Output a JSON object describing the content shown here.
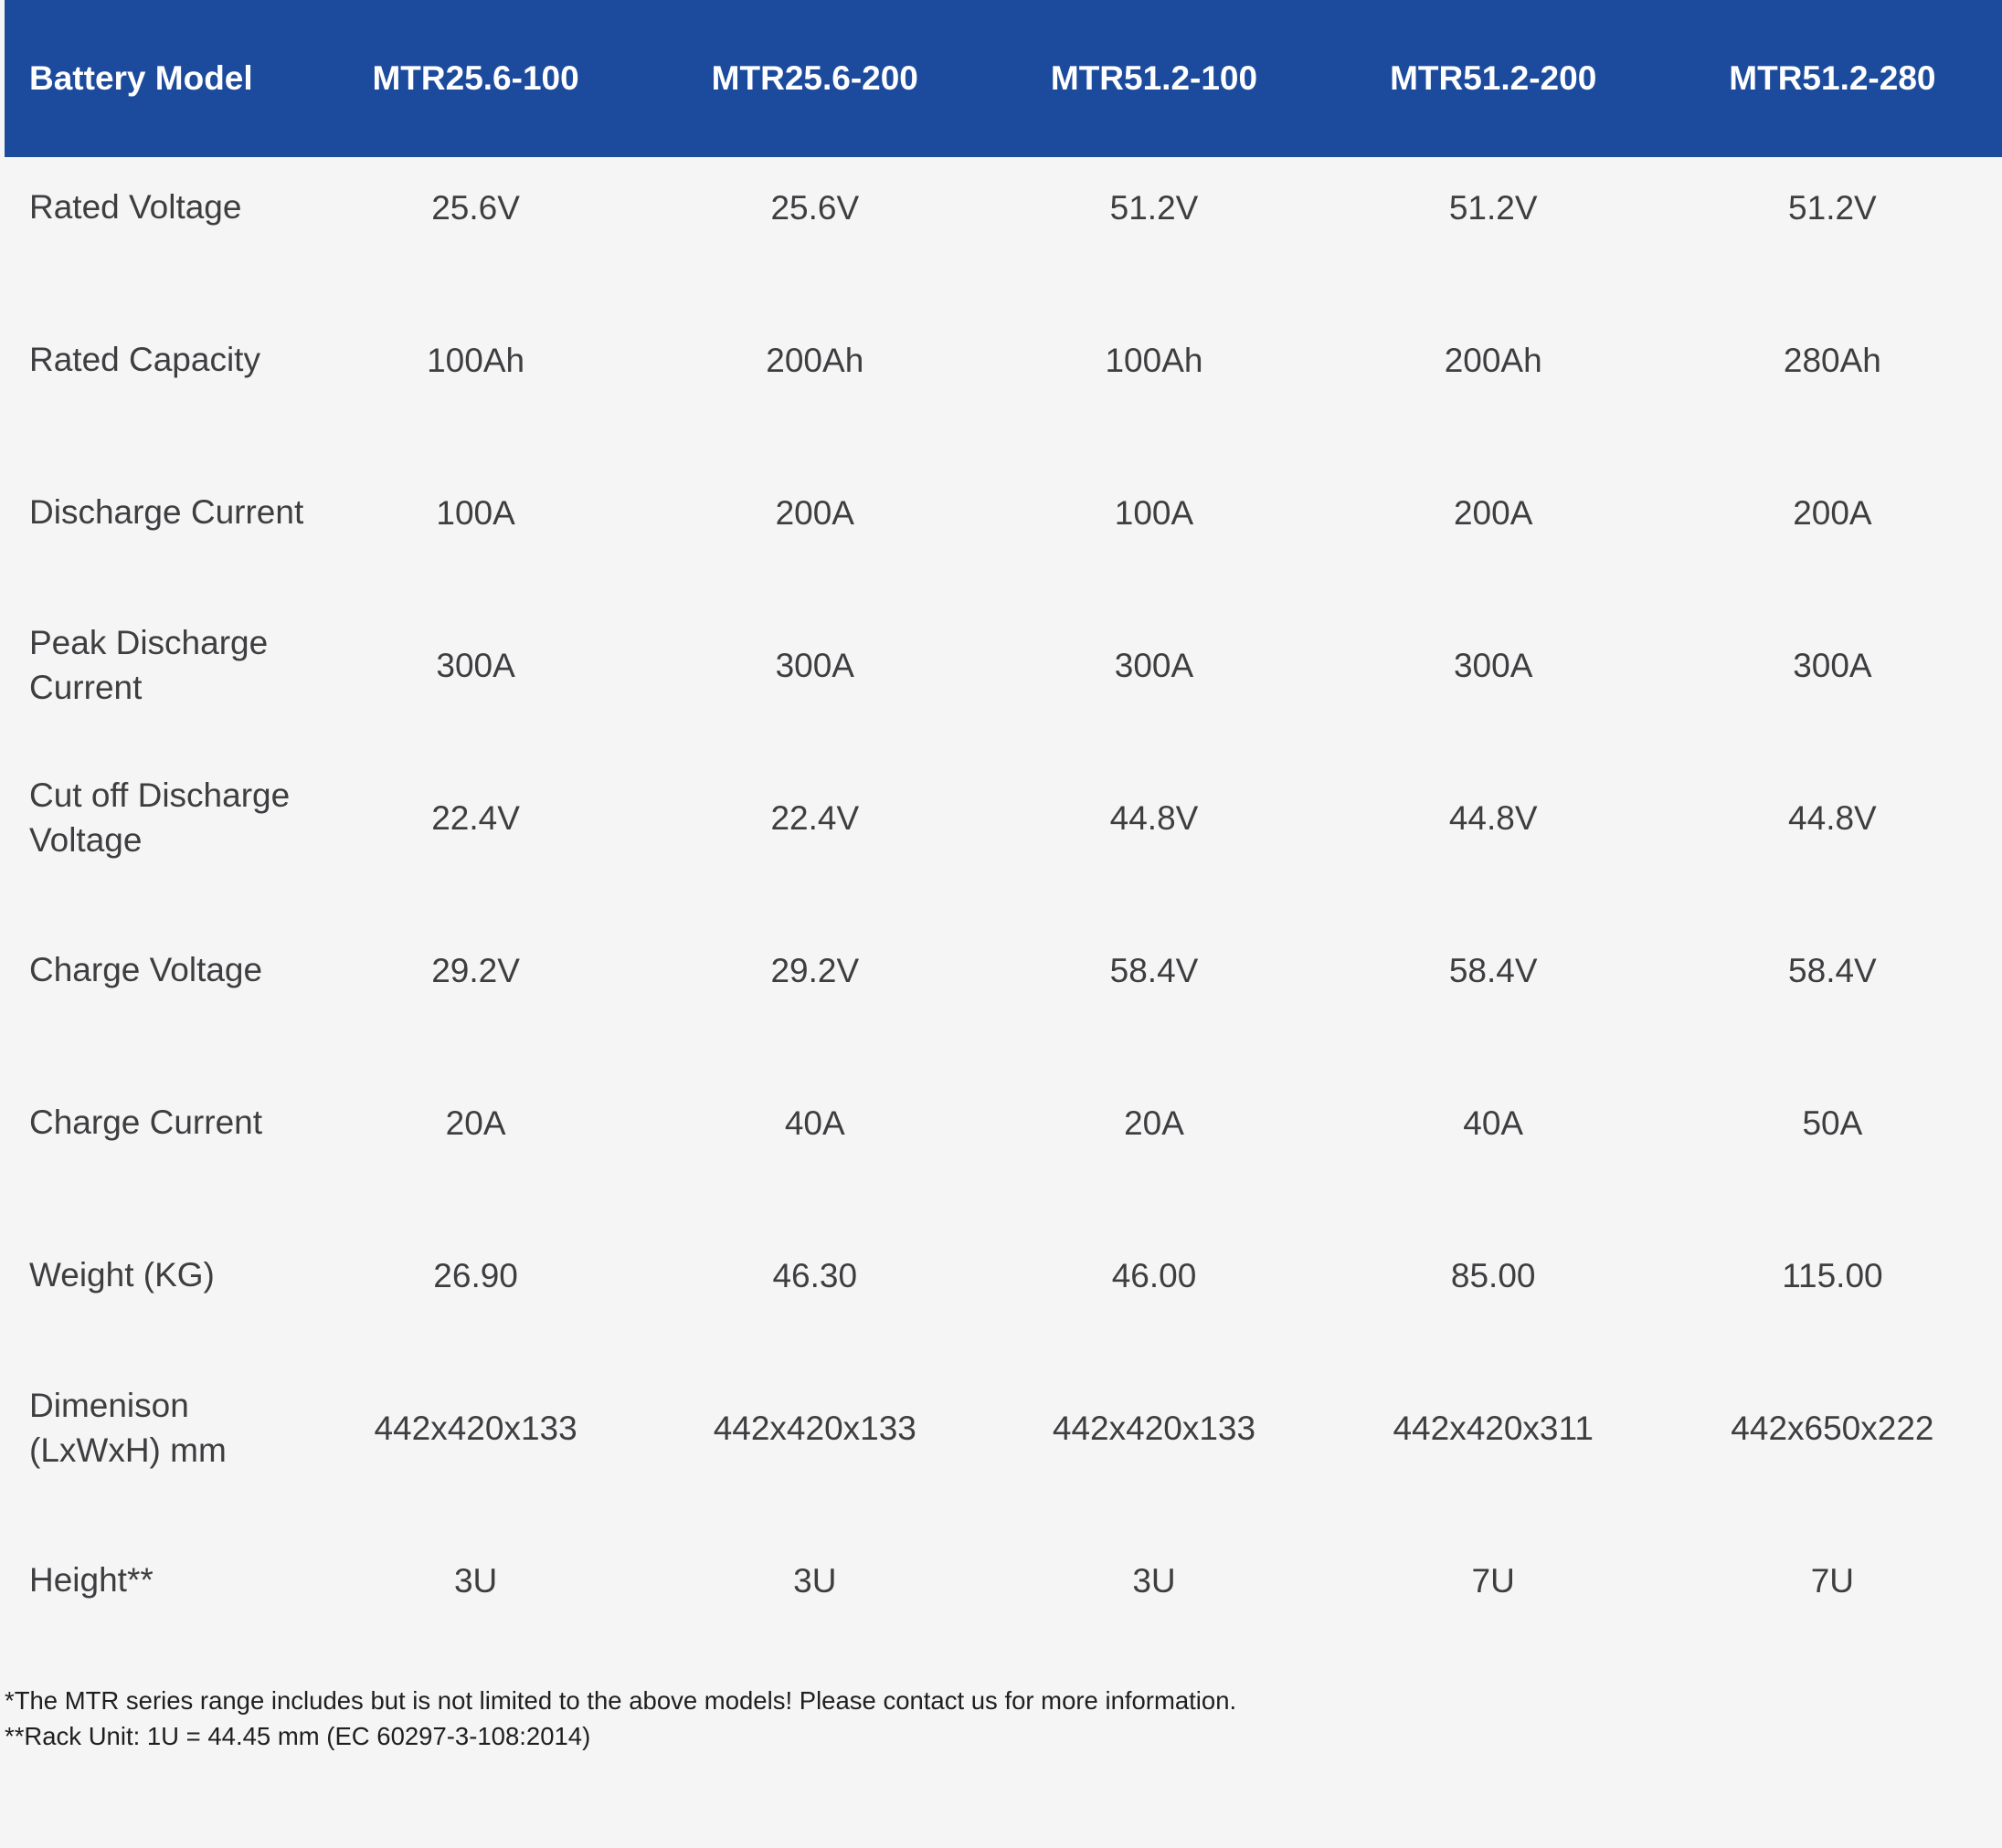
{
  "table": {
    "header": [
      "Battery Model",
      "MTR25.6-100",
      "MTR25.6-200",
      "MTR51.2-100",
      "MTR51.2-200",
      "MTR51.2-280"
    ],
    "rows": [
      {
        "label": "Rated Voltage",
        "values": [
          "25.6V",
          "25.6V",
          "51.2V",
          "51.2V",
          "51.2V"
        ]
      },
      {
        "label": "Rated Capacity",
        "values": [
          "100Ah",
          "200Ah",
          "100Ah",
          "200Ah",
          "280Ah"
        ]
      },
      {
        "label": "Discharge Current",
        "values": [
          "100A",
          "200A",
          "100A",
          "200A",
          "200A"
        ]
      },
      {
        "label": "Peak Discharge Current",
        "values": [
          "300A",
          "300A",
          "300A",
          "300A",
          "300A"
        ]
      },
      {
        "label": "Cut off Discharge Voltage",
        "values": [
          "22.4V",
          "22.4V",
          "44.8V",
          "44.8V",
          "44.8V"
        ]
      },
      {
        "label": "Charge Voltage",
        "values": [
          "29.2V",
          "29.2V",
          "58.4V",
          "58.4V",
          "58.4V"
        ]
      },
      {
        "label": "Charge Current",
        "values": [
          "20A",
          "40A",
          "20A",
          "40A",
          "50A"
        ]
      },
      {
        "label": "Weight (KG)",
        "values": [
          "26.90",
          "46.30",
          "46.00",
          "85.00",
          "115.00"
        ]
      },
      {
        "label": "Dimenison (LxWxH) mm",
        "values": [
          "442x420x133",
          "442x420x133",
          "442x420x133",
          "442x420x311",
          "442x650x222"
        ]
      },
      {
        "label": "Height**",
        "values": [
          "3U",
          "3U",
          "3U",
          "7U",
          "7U"
        ]
      }
    ],
    "footnotes": [
      "*The MTR series range includes but is not limited to the above models! Please contact us for more information.",
      "**Rack Unit: 1U = 44.45 mm (EC 60297-3-108:2014)"
    ]
  },
  "colors": {
    "header_bg": "#1C4B9D",
    "header_text": "#FFFFFF",
    "page_bg": "#F5F5F6",
    "row_text": "#3E3E40",
    "footnote_text": "#1F1F1F"
  }
}
